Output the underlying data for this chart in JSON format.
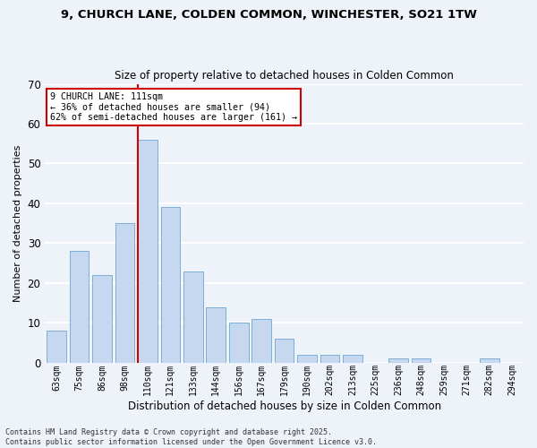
{
  "title_line1": "9, CHURCH LANE, COLDEN COMMON, WINCHESTER, SO21 1TW",
  "title_line2": "Size of property relative to detached houses in Colden Common",
  "xlabel": "Distribution of detached houses by size in Colden Common",
  "ylabel": "Number of detached properties",
  "categories": [
    "63sqm",
    "75sqm",
    "86sqm",
    "98sqm",
    "110sqm",
    "121sqm",
    "133sqm",
    "144sqm",
    "156sqm",
    "167sqm",
    "179sqm",
    "190sqm",
    "202sqm",
    "213sqm",
    "225sqm",
    "236sqm",
    "248sqm",
    "259sqm",
    "271sqm",
    "282sqm",
    "294sqm"
  ],
  "values": [
    8,
    28,
    22,
    35,
    56,
    39,
    23,
    14,
    10,
    11,
    6,
    2,
    2,
    2,
    0,
    1,
    1,
    0,
    0,
    1,
    0
  ],
  "bar_color": "#c5d8f0",
  "bar_edge_color": "#7bafd4",
  "highlight_index": 4,
  "highlight_line_color": "#cc0000",
  "annotation_text": "9 CHURCH LANE: 111sqm\n← 36% of detached houses are smaller (94)\n62% of semi-detached houses are larger (161) →",
  "annotation_box_color": "#ffffff",
  "annotation_box_edge": "#cc0000",
  "ylim": [
    0,
    70
  ],
  "yticks": [
    0,
    10,
    20,
    30,
    40,
    50,
    60,
    70
  ],
  "background_color": "#eef2f9",
  "grid_color": "#ffffff",
  "footnote": "Contains HM Land Registry data © Crown copyright and database right 2025.\nContains public sector information licensed under the Open Government Licence v3.0."
}
